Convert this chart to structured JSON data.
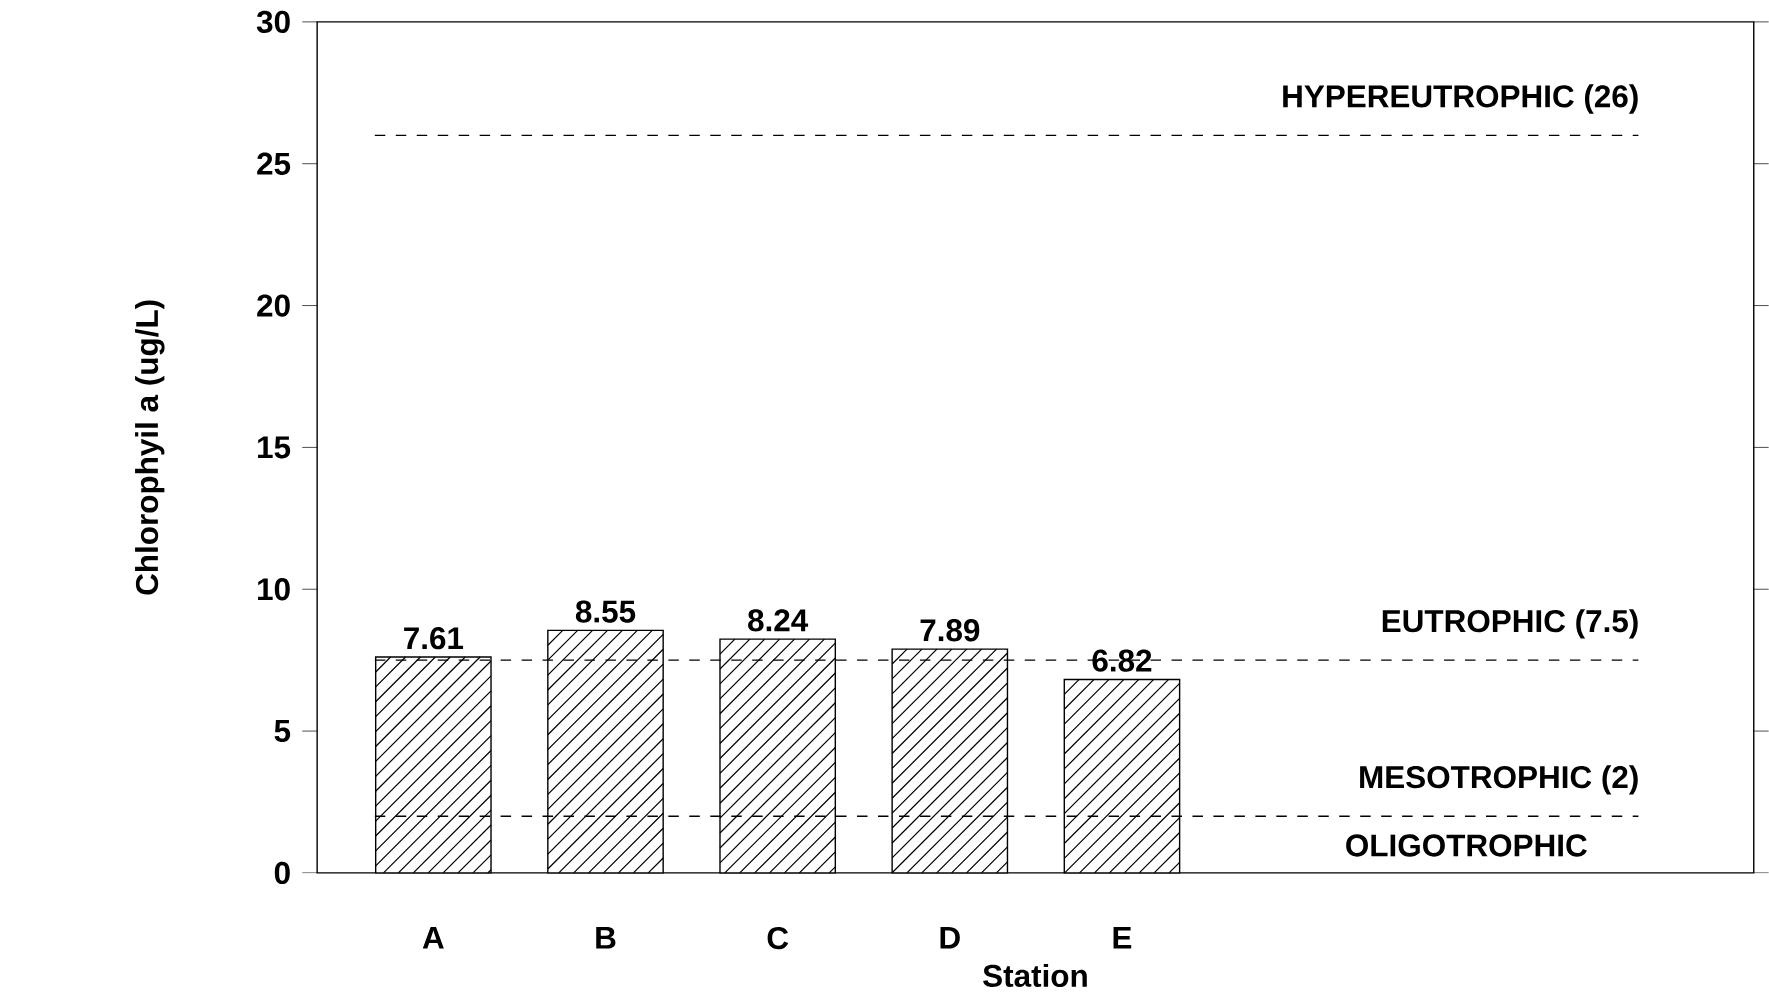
{
  "chart_data": {
    "type": "bar",
    "xlabel": "Station",
    "ylabel": "Chlorophyil a (ug/L)",
    "categories": [
      "A",
      "B",
      "C",
      "D",
      "E"
    ],
    "values": [
      7.61,
      8.55,
      8.24,
      7.89,
      6.82
    ],
    "color": "#000000",
    "data_labels": true,
    "line_style": "dashed",
    "ylim": [
      0,
      30
    ],
    "yticks": [
      0,
      5,
      10,
      15,
      20,
      25,
      30
    ],
    "ref_lines": [
      {
        "axis": "y",
        "value": 26,
        "label": "HYPEREUTROPHIC (26)"
      },
      {
        "axis": "y",
        "value": 7.5,
        "label": "EUTROPHIC (7.5)"
      },
      {
        "axis": "y",
        "value": 2,
        "label": "MESOTROPHIC (2)"
      }
    ],
    "annotations": [
      "OLIGOTROPHIC"
    ]
  }
}
